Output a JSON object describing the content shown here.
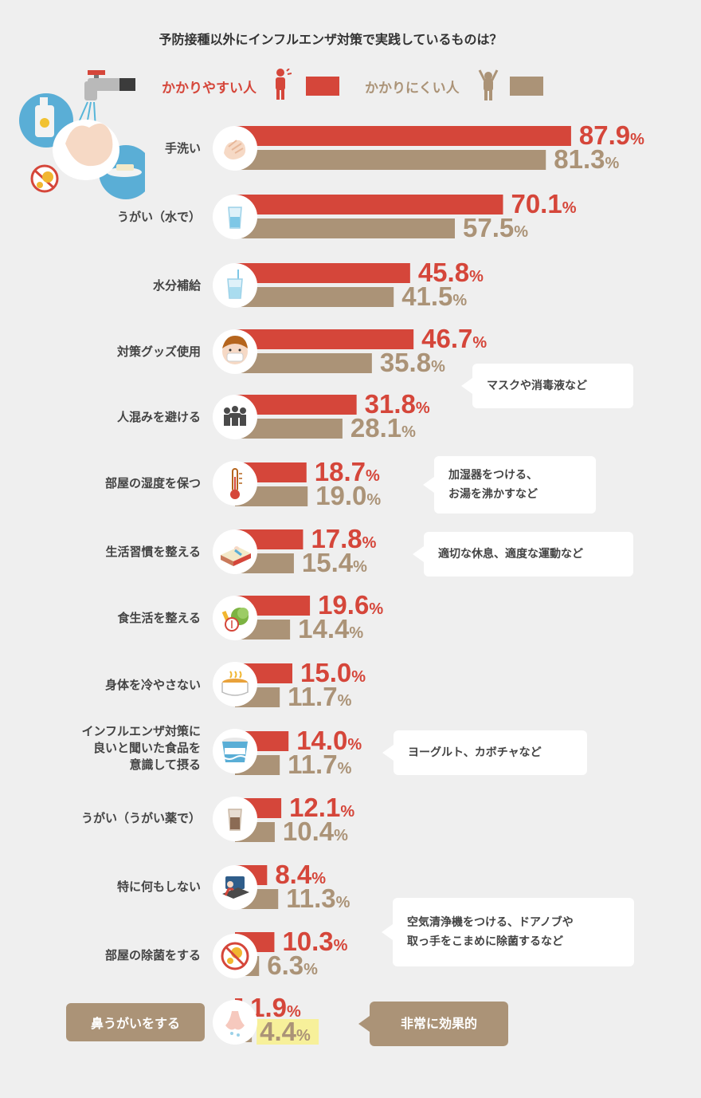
{
  "title": "予防接種以外にインフルエンザ対策で実践しているものは？",
  "legend": {
    "susceptible": "かかりやすい人",
    "resistant": "かかりにくい人"
  },
  "colors": {
    "susceptible": "#d5463a",
    "resistant": "#ab9377",
    "highlight": "#f7f09a"
  },
  "chart_data": {
    "type": "bar",
    "categories": [
      "手洗い",
      "うがい（水で）",
      "水分補給",
      "対策グッズ使用",
      "人混みを避ける",
      "部屋の湿度を保つ",
      "生活習慣を整える",
      "食生活を整える",
      "身体を冷やさない",
      "インフルエンザ対策に\n良いと聞いた食品を\n意識して摂る",
      "うがい（うがい薬で）",
      "特に何もしない",
      "部屋の除菌をする",
      "鼻うがいをする"
    ],
    "series": [
      {
        "name": "かかりやすい人",
        "values": [
          87.9,
          70.1,
          45.8,
          46.7,
          31.8,
          18.7,
          17.8,
          19.6,
          15.0,
          14.0,
          12.1,
          8.4,
          10.3,
          1.9
        ]
      },
      {
        "name": "かかりにくい人",
        "values": [
          81.3,
          57.5,
          41.5,
          35.8,
          28.1,
          19.0,
          15.4,
          14.4,
          11.7,
          11.7,
          10.4,
          11.3,
          6.3,
          4.4
        ]
      }
    ],
    "unit": "%",
    "notes": [
      {
        "category_index": 3,
        "text": "マスクや消毒液など"
      },
      {
        "category_index": 5,
        "text": "加湿器をつける、\nお湯を沸かすなど"
      },
      {
        "category_index": 6,
        "text": "適切な休息、適度な運動など"
      },
      {
        "category_index": 9,
        "text": "ヨーグルト、カボチャなど"
      },
      {
        "category_index": 12,
        "text": "空気清浄機をつける、ドアノブや\n取っ手をこまめに除菌するなど"
      },
      {
        "category_index": 13,
        "text": "非常に効果的"
      }
    ]
  },
  "icons": [
    "faucet-illustration",
    "hand-wash-icon",
    "water-glass-icon",
    "drink-cup-icon",
    "boy-mask-icon",
    "crowd-icon",
    "thermometer-icon",
    "bed-icon",
    "vegetables-icon",
    "soup-pot-icon",
    "yogurt-icon",
    "gargle-cup-icon",
    "sleeping-person-icon",
    "no-virus-icon",
    "nose-icon",
    "person-icon"
  ]
}
